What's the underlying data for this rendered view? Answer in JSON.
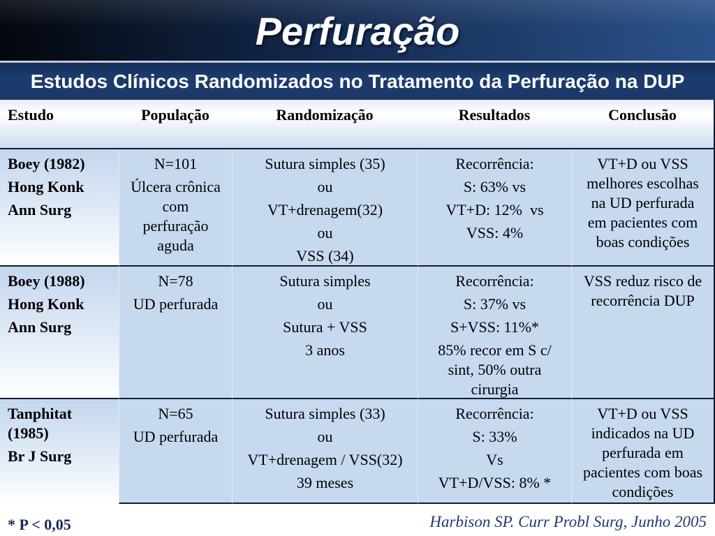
{
  "slide": {
    "title": "Perfuração",
    "subtitle": "Estudos Clínicos Randomizados no Tratamento da Perfuração na DUP"
  },
  "table": {
    "headers": [
      "Estudo",
      "População",
      "Randomização",
      "Resultados",
      "Conclusão"
    ],
    "rows": [
      {
        "estudo": [
          "Boey (1982)",
          "Hong Konk",
          "Ann Surg"
        ],
        "populacao": [
          "N=101",
          "Úlcera crônica com perfuração aguda"
        ],
        "randomizacao": [
          "Sutura simples (35)",
          "ou",
          "VT+drenagem(32)",
          "ou",
          "VSS (34)"
        ],
        "resultados": [
          "Recorrência:",
          "S: 63% vs",
          "VT+D: 12%  vs",
          "VSS: 4%"
        ],
        "conclusao": [
          "VT+D ou VSS melhores escolhas na UD perfurada em pacientes com boas condições"
        ]
      },
      {
        "estudo": [
          "Boey (1988)",
          "Hong Konk",
          "Ann Surg"
        ],
        "populacao": [
          "N=78",
          "UD perfurada"
        ],
        "randomizacao": [
          "Sutura simples",
          "ou",
          "Sutura + VSS",
          "3 anos"
        ],
        "resultados": [
          "Recorrência:",
          "S: 37% vs",
          "S+VSS: 11%*",
          "85% recor em S c/ sint, 50% outra cirurgia"
        ],
        "conclusao": [
          "VSS reduz risco de recorrência DUP"
        ]
      },
      {
        "estudo": [
          "Tanphitat (1985)",
          "Br J Surg"
        ],
        "populacao": [
          "N=65",
          "UD perfurada"
        ],
        "randomizacao": [
          "Sutura simples (33)",
          "ou",
          "VT+drenagem / VSS(32)",
          "39 meses"
        ],
        "resultados": [
          "Recorrência:",
          "S: 33%",
          "Vs",
          "VT+D/VSS: 8% *"
        ],
        "conclusao": [
          "VT+D ou VSS indicados na UD perfurada em pacientes com boas condições"
        ]
      }
    ]
  },
  "footer": {
    "note": "* P < 0,05",
    "citation": "Harbison SP. Curr Probl Surg, Junho 2005"
  },
  "theme": {
    "banner_dark": "#03060c",
    "banner_mid": "#142b52",
    "banner_light": "#2b528b",
    "subtitle_bar": "#1d3b6f",
    "cell_fill": "#c6d9ef",
    "rule": "#0f1b33",
    "footnote_text": "#18275a",
    "citation_text": "#1f3b76"
  }
}
